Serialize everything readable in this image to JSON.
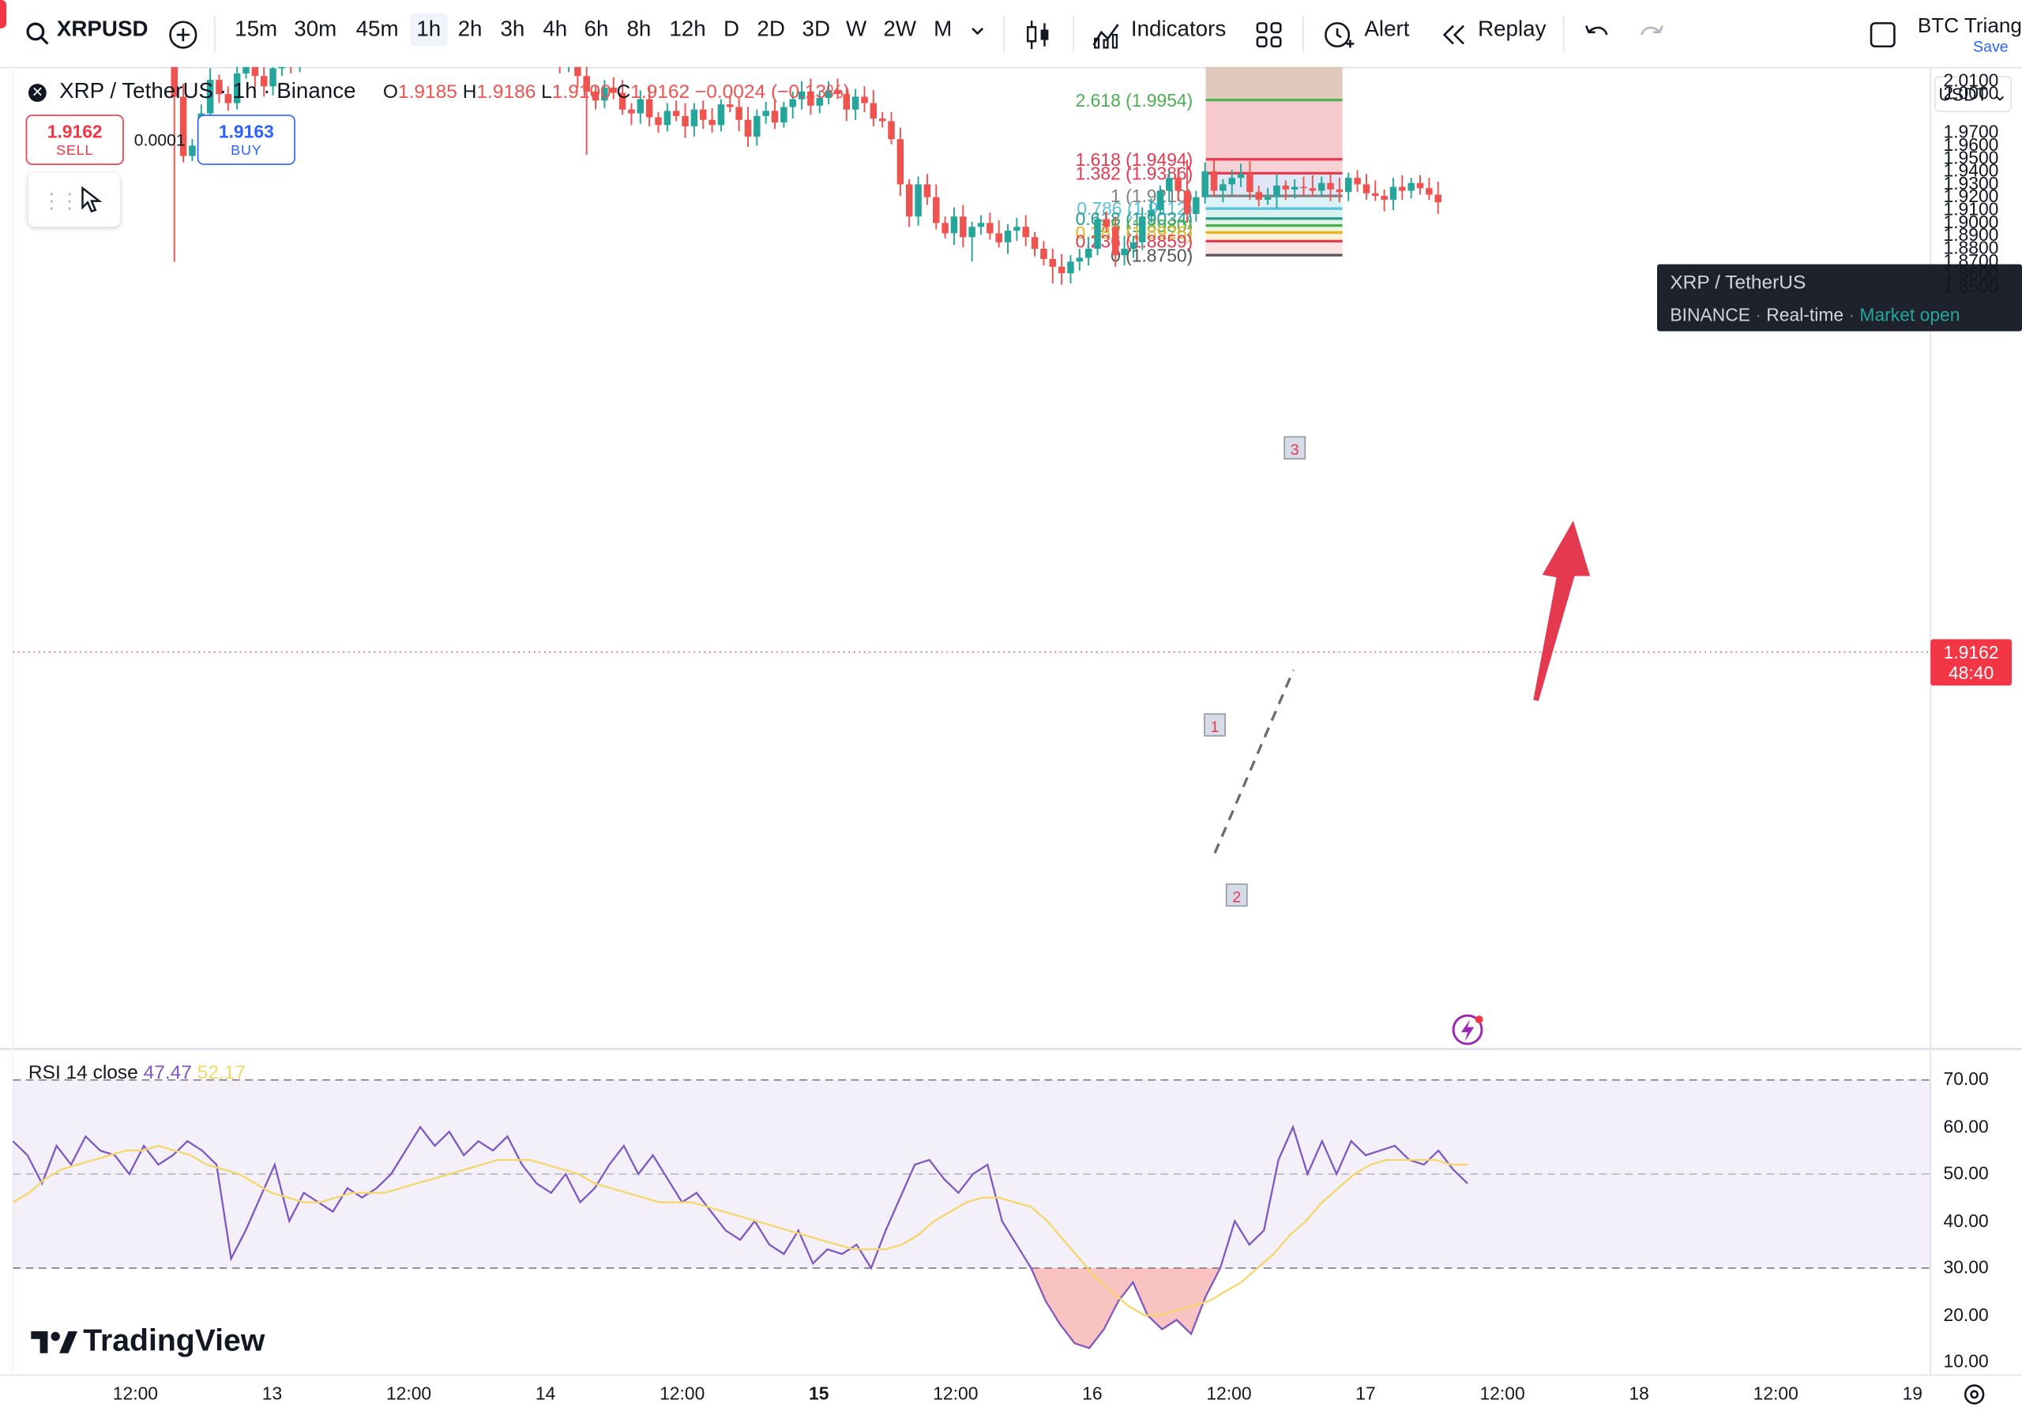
{
  "toolbar": {
    "symbol": "XRPUSD",
    "timeframes": [
      "15m",
      "30m",
      "45m",
      "1h",
      "2h",
      "3h",
      "4h",
      "6h",
      "8h",
      "12h",
      "D",
      "2D",
      "3D",
      "W",
      "2W",
      "M"
    ],
    "active_timeframe": "1h",
    "indicators_label": "Indicators",
    "alert_label": "Alert",
    "replay_label": "Replay",
    "layout_name": "BTC Triang",
    "save_label": "Save"
  },
  "legend": {
    "title": "XRP / TetherUS · 1h · Binance",
    "o_label": "O",
    "o_value": "1.9185",
    "h_label": "H",
    "h_value": "1.9186",
    "l_label": "L",
    "l_value": "1.9100",
    "c_label": "C",
    "c_value": "1.9162",
    "change": "−0.0024 (−0.13%)",
    "sell_price": "1.9162",
    "sell_label": "SELL",
    "spread": "0.0001",
    "buy_price": "1.9163",
    "buy_label": "BUY"
  },
  "currency": "USDT",
  "tooltip": {
    "title": "XRP / TetherUS",
    "exchange": "BINANCE",
    "realtime": "Real-time",
    "status": "Market open"
  },
  "price_axis": [
    "2.0100",
    "2.0000",
    "1.9700",
    "1.9600",
    "1.9500",
    "1.9400",
    "1.9300",
    "1.9200",
    "1.9100",
    "1.9000",
    "1.8900",
    "1.8800",
    "1.8700",
    "1.8600",
    "1.8500"
  ],
  "last_price": {
    "price": "1.9162",
    "countdown": "48:40"
  },
  "fib_levels": [
    {
      "label": "2.618 (1.9954)",
      "color": "#4caf50",
      "value": 1.9954
    },
    {
      "label": "1.618 (1.9494)",
      "color": "#e53950",
      "value": 1.9494
    },
    {
      "label": "1.382 (1.9386)",
      "color": "#e53950",
      "value": 1.9386
    },
    {
      "label": "1 (1.9210)",
      "color": "#808080",
      "value": 1.921
    },
    {
      "label": "0.786 (1.9112)",
      "color": "#5bc0de",
      "value": 1.9112
    },
    {
      "label": "0.618 (1.9034)",
      "color": "#2a9d8f",
      "value": 1.9034
    },
    {
      "label": "0.5 (1.8980)",
      "color": "#4caf50",
      "value": 1.898
    },
    {
      "label": "0.382 (1.8926)",
      "color": "#e6b422",
      "value": 1.8926
    },
    {
      "label": "0.236 (1.8859)",
      "color": "#e53950",
      "value": 1.8859
    },
    {
      "label": "0 (1.8750)",
      "color": "#555555",
      "value": 1.875
    }
  ],
  "fib_points": [
    "1",
    "2",
    "3"
  ],
  "rsi": {
    "label": "RSI 14 close",
    "value1": "47.47",
    "value2": "52.17",
    "axis": [
      "70.00",
      "60.00",
      "50.00",
      "40.00",
      "30.00",
      "20.00",
      "10.00"
    ]
  },
  "time_axis": [
    "12:00",
    "13",
    "12:00",
    "14",
    "12:00",
    "15",
    "12:00",
    "16",
    "12:00",
    "17",
    "12:00",
    "18",
    "12:00",
    "19"
  ],
  "brand": "TradingView",
  "colors": {
    "up": "#26a69a",
    "down": "#ef5350",
    "rsi_line": "#7e57c2",
    "rsi_ma": "#f5d66b",
    "arrow": "#e53950"
  }
}
